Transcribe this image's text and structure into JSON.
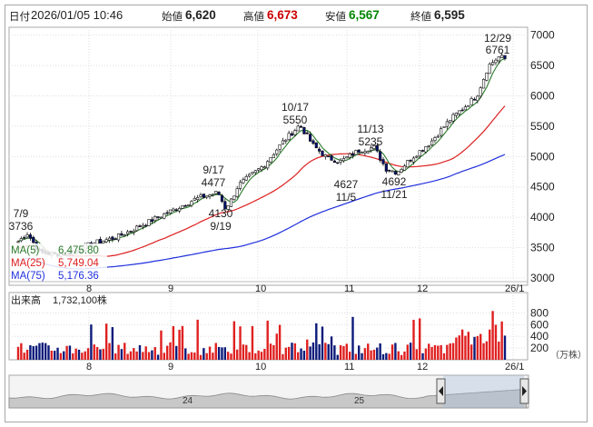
{
  "header": {
    "datetime_label": "日付",
    "datetime": "2026/01/05 10:46",
    "open_label": "始値",
    "open": "6,620",
    "high_label": "高値",
    "high": "6,673",
    "low_label": "安値",
    "low": "6,567",
    "close_label": "終値",
    "close": "6,595"
  },
  "colors": {
    "up": "#ffffff",
    "down": "#001070",
    "high_value": "#cc0000",
    "low_value": "#008800",
    "ma5": "#2a7a2a",
    "ma25": "#dd2020",
    "ma75": "#2030dd",
    "volume_up": "#e02020",
    "volume_down": "#0b1a7a"
  },
  "legend": {
    "ma5_label": "MA(5)",
    "ma5_value": "6,475.80",
    "ma25_label": "MA(25)",
    "ma25_value": "5,749.04",
    "ma75_label": "MA(75)",
    "ma75_value": "5,176.36"
  },
  "volume": {
    "label": "出来高",
    "value": "1,732,100株",
    "unit": "（万株）",
    "ticks": [
      "800",
      "600",
      "400",
      "200"
    ]
  },
  "navigator": {
    "labels": [
      "24",
      "25"
    ],
    "left_handle_icon": "chevron-left-icon",
    "right_handle_icon": "chevron-right-icon"
  },
  "annotations": [
    {
      "date": "7/9",
      "value": "3736"
    },
    {
      "date": "9/17",
      "value": "4477"
    },
    {
      "date": "9/19",
      "value": "4130"
    },
    {
      "date": "10/17",
      "value": "5550"
    },
    {
      "date": "11/13",
      "value": "5235"
    },
    {
      "date": "11/5",
      "value": "4627"
    },
    {
      "date": "11/21",
      "value": "4692"
    },
    {
      "date": "12/29",
      "value": "6761"
    }
  ],
  "chart_data": {
    "type": "candlestick",
    "x_labels": [
      "8",
      "9",
      "10",
      "11",
      "12",
      "26/1"
    ],
    "y_ticks": [
      3000,
      3500,
      4000,
      4500,
      5000,
      5500,
      6000,
      6500,
      7000
    ],
    "ylim": [
      2880,
      7130
    ],
    "series": [
      {
        "name": "MA(5)",
        "last": 6475.8
      },
      {
        "name": "MA(25)",
        "last": 5749.04
      },
      {
        "name": "MA(75)",
        "last": 5176.36
      }
    ]
  }
}
